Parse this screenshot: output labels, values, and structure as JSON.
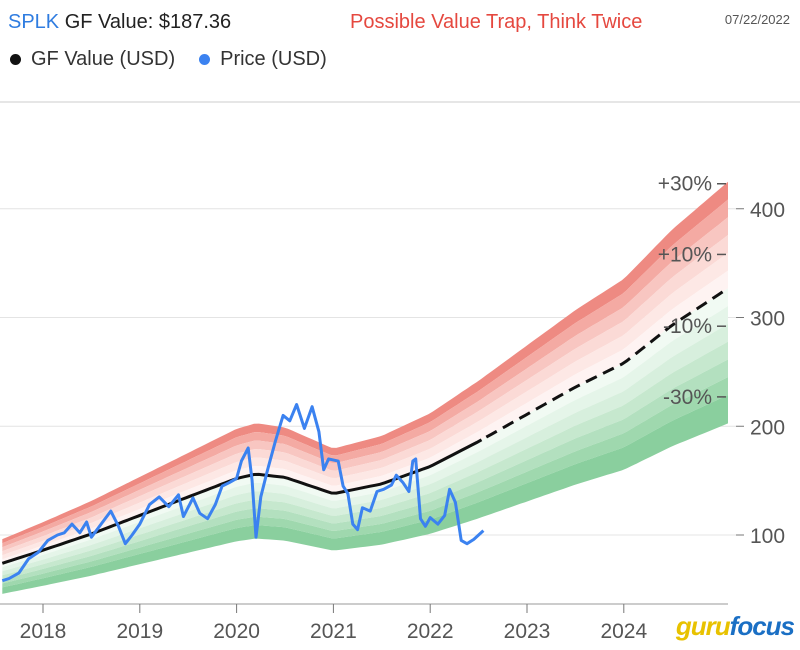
{
  "header": {
    "ticker": "SPLK",
    "gf_value_label": " GF Value: $187.36",
    "verdict": "Possible Value Trap, Think Twice",
    "date": "07/22/2022"
  },
  "legend": {
    "gf_value": "GF Value (USD)",
    "price": "Price (USD)"
  },
  "colors": {
    "gf_value_line": "#111111",
    "price_line": "#3b82f0",
    "upper_band": "#ef8c84",
    "lower_band": "#8fd1a0"
  },
  "logo": {
    "part1": "guru",
    "part2": "focus"
  },
  "chart_data": {
    "type": "line",
    "x_ticks": [
      "2018",
      "2019",
      "2020",
      "2021",
      "2022",
      "2023",
      "2024"
    ],
    "y_ticks": [
      100,
      200,
      300,
      400
    ],
    "ylim": [
      35,
      485
    ],
    "xlim": [
      2017.58,
      2025.08
    ],
    "band_labels": [
      {
        "label": "+30%",
        "y": 423
      },
      {
        "label": "+10%",
        "y": 358
      },
      {
        "label": "-10%",
        "y": 292
      },
      {
        "label": "-30%",
        "y": 227
      }
    ],
    "gf_value": {
      "name": "GF Value (USD)",
      "points": [
        [
          2017.58,
          74
        ],
        [
          2018.0,
          86
        ],
        [
          2018.5,
          101
        ],
        [
          2019.0,
          118
        ],
        [
          2019.5,
          135
        ],
        [
          2020.0,
          152
        ],
        [
          2020.2,
          156
        ],
        [
          2020.5,
          153
        ],
        [
          2021.0,
          138
        ],
        [
          2021.5,
          147
        ],
        [
          2022.0,
          163
        ],
        [
          2022.5,
          186
        ],
        [
          2023.0,
          211
        ],
        [
          2023.5,
          236
        ],
        [
          2024.0,
          258
        ],
        [
          2024.5,
          293
        ],
        [
          2025.08,
          327
        ]
      ],
      "projected_from": 2022.55
    },
    "price": {
      "name": "Price (USD)",
      "points": [
        [
          2017.58,
          58
        ],
        [
          2017.65,
          60
        ],
        [
          2017.75,
          65
        ],
        [
          2017.85,
          78
        ],
        [
          2017.95,
          84
        ],
        [
          2018.05,
          95
        ],
        [
          2018.15,
          100
        ],
        [
          2018.22,
          102
        ],
        [
          2018.3,
          110
        ],
        [
          2018.38,
          102
        ],
        [
          2018.45,
          112
        ],
        [
          2018.5,
          98
        ],
        [
          2018.6,
          110
        ],
        [
          2018.7,
          122
        ],
        [
          2018.78,
          108
        ],
        [
          2018.85,
          92
        ],
        [
          2018.92,
          100
        ],
        [
          2019.0,
          110
        ],
        [
          2019.1,
          128
        ],
        [
          2019.2,
          135
        ],
        [
          2019.3,
          126
        ],
        [
          2019.4,
          137
        ],
        [
          2019.45,
          117
        ],
        [
          2019.55,
          134
        ],
        [
          2019.62,
          120
        ],
        [
          2019.7,
          115
        ],
        [
          2019.78,
          128
        ],
        [
          2019.85,
          145
        ],
        [
          2019.92,
          148
        ],
        [
          2020.0,
          152
        ],
        [
          2020.05,
          168
        ],
        [
          2020.12,
          180
        ],
        [
          2020.16,
          150
        ],
        [
          2020.2,
          98
        ],
        [
          2020.25,
          135
        ],
        [
          2020.32,
          160
        ],
        [
          2020.4,
          186
        ],
        [
          2020.48,
          210
        ],
        [
          2020.55,
          205
        ],
        [
          2020.62,
          220
        ],
        [
          2020.7,
          198
        ],
        [
          2020.78,
          218
        ],
        [
          2020.85,
          195
        ],
        [
          2020.9,
          160
        ],
        [
          2020.95,
          170
        ],
        [
          2021.05,
          168
        ],
        [
          2021.1,
          145
        ],
        [
          2021.15,
          138
        ],
        [
          2021.2,
          110
        ],
        [
          2021.25,
          105
        ],
        [
          2021.3,
          125
        ],
        [
          2021.38,
          122
        ],
        [
          2021.45,
          140
        ],
        [
          2021.52,
          142
        ],
        [
          2021.6,
          146
        ],
        [
          2021.65,
          155
        ],
        [
          2021.72,
          148
        ],
        [
          2021.78,
          140
        ],
        [
          2021.82,
          168
        ],
        [
          2021.85,
          170
        ],
        [
          2021.9,
          115
        ],
        [
          2021.95,
          108
        ],
        [
          2022.0,
          116
        ],
        [
          2022.08,
          110
        ],
        [
          2022.15,
          118
        ],
        [
          2022.2,
          142
        ],
        [
          2022.26,
          130
        ],
        [
          2022.32,
          95
        ],
        [
          2022.38,
          92
        ],
        [
          2022.45,
          96
        ],
        [
          2022.5,
          100
        ],
        [
          2022.55,
          104
        ]
      ]
    },
    "bands": {
      "upper_multipliers": [
        1.3,
        1.25,
        1.2,
        1.15,
        1.1,
        1.05
      ],
      "lower_multipliers": [
        0.95,
        0.9,
        0.85,
        0.8,
        0.75,
        0.7,
        0.62
      ]
    }
  }
}
